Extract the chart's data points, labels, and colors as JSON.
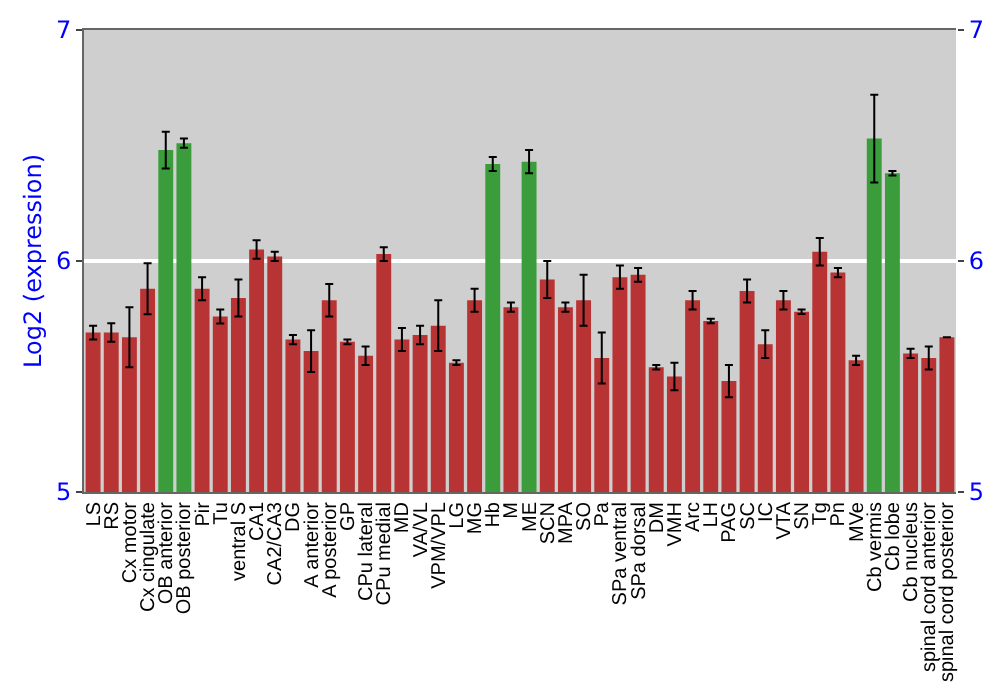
{
  "chart_data": {
    "type": "bar",
    "ylabel": "Log2 (expression)",
    "categories": [
      "LS",
      "RS",
      "Cx motor",
      "Cx cingulate",
      "OB anterior",
      "OB posterior",
      "Pir",
      "Tu",
      "ventral S",
      "CA1",
      "CA2/CA3",
      "DG",
      "A anterior",
      "A posterior",
      "GP",
      "CPu lateral",
      "CPu medial",
      "MD",
      "VA/VL",
      "VPM/VPL",
      "LG",
      "MG",
      "Hb",
      "M",
      "ME",
      "SCN",
      "MPA",
      "SO",
      "Pa",
      "SPa ventral",
      "SPa dorsal",
      "DM",
      "VMH",
      "Arc",
      "LH",
      "PAG",
      "SC",
      "IC",
      "VTA",
      "SN",
      "Tg",
      "Pn",
      "MVe",
      "Cb vermis",
      "Cb lobe",
      "Cb nucleus",
      "spinal cord anterior",
      "spinal cord posterior"
    ],
    "values": [
      5.69,
      5.69,
      5.67,
      5.88,
      6.48,
      6.51,
      5.88,
      5.76,
      5.84,
      6.05,
      6.02,
      5.66,
      5.61,
      5.83,
      5.65,
      5.59,
      6.03,
      5.66,
      5.68,
      5.72,
      5.56,
      5.83,
      6.42,
      5.8,
      6.43,
      5.92,
      5.8,
      5.83,
      5.58,
      5.93,
      5.94,
      5.54,
      5.5,
      5.83,
      5.74,
      5.48,
      5.87,
      5.64,
      5.83,
      5.78,
      6.04,
      5.95,
      5.57,
      6.53,
      6.38,
      5.6,
      5.58,
      5.67
    ],
    "errors": [
      0.03,
      0.04,
      0.13,
      0.11,
      0.08,
      0.02,
      0.05,
      0.03,
      0.08,
      0.04,
      0.02,
      0.02,
      0.09,
      0.07,
      0.01,
      0.04,
      0.03,
      0.05,
      0.04,
      0.11,
      0.01,
      0.05,
      0.03,
      0.02,
      0.05,
      0.08,
      0.02,
      0.11,
      0.11,
      0.05,
      0.03,
      0.01,
      0.06,
      0.04,
      0.01,
      0.07,
      0.05,
      0.06,
      0.04,
      0.01,
      0.06,
      0.02,
      0.02,
      0.19,
      0.01,
      0.02,
      0.05,
      null
    ],
    "colors": [
      "#b83333",
      "#b83333",
      "#b83333",
      "#b83333",
      "#3a9c3a",
      "#3a9c3a",
      "#b83333",
      "#b83333",
      "#b83333",
      "#b83333",
      "#b83333",
      "#b83333",
      "#b83333",
      "#b83333",
      "#b83333",
      "#b83333",
      "#b83333",
      "#b83333",
      "#b83333",
      "#b83333",
      "#b83333",
      "#b83333",
      "#3a9c3a",
      "#b83333",
      "#3a9c3a",
      "#b83333",
      "#b83333",
      "#b83333",
      "#b83333",
      "#b83333",
      "#b83333",
      "#b83333",
      "#b83333",
      "#b83333",
      "#b83333",
      "#b83333",
      "#b83333",
      "#b83333",
      "#b83333",
      "#b83333",
      "#b83333",
      "#b83333",
      "#b83333",
      "#3a9c3a",
      "#3a9c3a",
      "#b83333",
      "#b83333",
      "#b83333"
    ],
    "ylim": [
      5,
      7
    ],
    "yticks": [
      5,
      6,
      7
    ],
    "y2lim": [
      5,
      7
    ],
    "y2ticks": [
      5,
      6,
      7
    ],
    "grid": "y"
  }
}
